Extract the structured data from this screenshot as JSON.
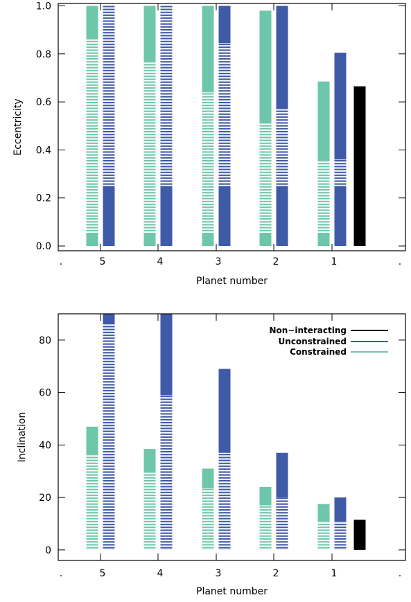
{
  "colors": {
    "constrained": "#6ec6ab",
    "unconstrained": "#3f5aa6",
    "non_interacting": "#000000",
    "axis": "#000000",
    "background": "#ffffff"
  },
  "chart_data": [
    {
      "type": "bar",
      "subtype": "floating-range",
      "xlabel": "Planet number",
      "ylabel": "Eccentricity",
      "categories": [
        "5",
        "4",
        "3",
        "2",
        "1"
      ],
      "ylim": [
        -0.02,
        1.01
      ],
      "yticks": [
        0.0,
        0.2,
        0.4,
        0.6,
        0.8,
        1.0
      ],
      "ytick_labels": [
        "0.0",
        "0.2",
        "0.4",
        "0.6",
        "0.8",
        "1.0"
      ],
      "series": [
        {
          "key": "constrained",
          "bars": [
            {
              "category": "5",
              "solid_low": [
                0.0,
                0.055
              ],
              "hatched": [
                0.055,
                0.86
              ],
              "solid_high": [
                0.86,
                1.0
              ]
            },
            {
              "category": "4",
              "solid_low": [
                0.0,
                0.055
              ],
              "hatched": [
                0.055,
                0.765
              ],
              "solid_high": [
                0.765,
                1.0
              ]
            },
            {
              "category": "3",
              "solid_low": [
                0.0,
                0.055
              ],
              "hatched": [
                0.055,
                0.64
              ],
              "solid_high": [
                0.64,
                1.0
              ]
            },
            {
              "category": "2",
              "solid_low": [
                0.0,
                0.055
              ],
              "hatched": [
                0.055,
                0.51
              ],
              "solid_high": [
                0.51,
                0.98
              ]
            },
            {
              "category": "1",
              "solid_low": [
                0.0,
                0.055
              ],
              "hatched": [
                0.055,
                0.355
              ],
              "solid_high": [
                0.355,
                0.685
              ]
            }
          ]
        },
        {
          "key": "unconstrained",
          "bars": [
            {
              "category": "5",
              "solid_low": [
                0.0,
                0.25
              ],
              "hatched": [
                0.25,
                1.0
              ],
              "solid_high": null
            },
            {
              "category": "4",
              "solid_low": [
                0.0,
                0.25
              ],
              "hatched": [
                0.25,
                1.0
              ],
              "solid_high": null
            },
            {
              "category": "3",
              "solid_low": [
                0.0,
                0.25
              ],
              "hatched": [
                0.25,
                0.845
              ],
              "solid_high": [
                0.845,
                1.0
              ]
            },
            {
              "category": "2",
              "solid_low": [
                0.0,
                0.25
              ],
              "hatched": [
                0.25,
                0.57
              ],
              "solid_high": [
                0.57,
                1.0
              ]
            },
            {
              "category": "1",
              "solid_low": [
                0.0,
                0.25
              ],
              "hatched": [
                0.25,
                0.36
              ],
              "solid_high": [
                0.36,
                0.805
              ]
            }
          ]
        },
        {
          "key": "non_interacting",
          "bars": [
            {
              "category": "1",
              "solid_low": [
                0.0,
                0.665
              ],
              "hatched": null,
              "solid_high": null
            }
          ]
        }
      ],
      "grid": false,
      "legend": null
    },
    {
      "type": "bar",
      "subtype": "floating-range",
      "xlabel": "Planet number",
      "ylabel": "Inclination",
      "categories": [
        "5",
        "4",
        "3",
        "2",
        "1"
      ],
      "ylim": [
        -4,
        90
      ],
      "yticks": [
        0,
        20,
        40,
        60,
        80
      ],
      "ytick_labels": [
        "0",
        "20",
        "40",
        "60",
        "80"
      ],
      "series": [
        {
          "key": "constrained",
          "name": "Constrained",
          "bars": [
            {
              "category": "5",
              "solid_low": null,
              "hatched": [
                0,
                36.5
              ],
              "solid_high": [
                36.5,
                47
              ]
            },
            {
              "category": "4",
              "solid_low": null,
              "hatched": [
                0,
                29.5
              ],
              "solid_high": [
                29.5,
                38.5
              ]
            },
            {
              "category": "3",
              "solid_low": null,
              "hatched": [
                0,
                23.5
              ],
              "solid_high": [
                23.5,
                31
              ]
            },
            {
              "category": "2",
              "solid_low": null,
              "hatched": [
                0,
                17
              ],
              "solid_high": [
                17,
                24
              ]
            },
            {
              "category": "1",
              "solid_low": null,
              "hatched": [
                0,
                11
              ],
              "solid_high": [
                11,
                17.5
              ]
            }
          ]
        },
        {
          "key": "unconstrained",
          "name": "Unconstrained",
          "bars": [
            {
              "category": "5",
              "solid_low": null,
              "hatched": [
                0,
                86
              ],
              "solid_high": [
                86,
                90
              ]
            },
            {
              "category": "4",
              "solid_low": null,
              "hatched": [
                0,
                59
              ],
              "solid_high": [
                59,
                90
              ]
            },
            {
              "category": "3",
              "solid_low": null,
              "hatched": [
                0,
                37
              ],
              "solid_high": [
                37,
                69
              ]
            },
            {
              "category": "2",
              "solid_low": null,
              "hatched": [
                0,
                20
              ],
              "solid_high": [
                20,
                37
              ]
            },
            {
              "category": "1",
              "solid_low": null,
              "hatched": [
                0,
                11
              ],
              "solid_high": [
                11,
                20
              ]
            }
          ]
        },
        {
          "key": "non_interacting",
          "name": "Non-interacting",
          "bars": [
            {
              "category": "1",
              "solid_low": [
                0,
                11.5
              ],
              "hatched": null,
              "solid_high": null
            }
          ]
        }
      ],
      "grid": false,
      "legend": {
        "placement": "top-right",
        "entries": [
          {
            "label": "Non−interacting",
            "key": "non_interacting"
          },
          {
            "label": "Unconstrained",
            "key": "unconstrained"
          },
          {
            "label": "Constrained",
            "key": "constrained"
          }
        ]
      }
    }
  ]
}
